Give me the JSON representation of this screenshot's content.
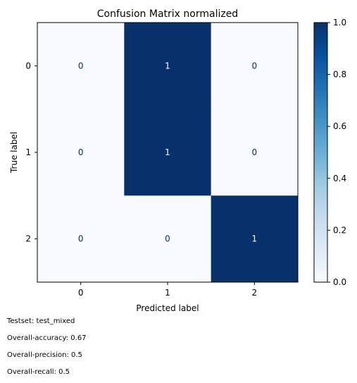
{
  "chart_data": {
    "type": "heatmap",
    "title": "Confusion Matrix normalized",
    "xlabel": "Predicted label",
    "ylabel": "True label",
    "x_categories": [
      "0",
      "1",
      "2"
    ],
    "y_categories": [
      "0",
      "1",
      "2"
    ],
    "values": [
      [
        0,
        1,
        0
      ],
      [
        0,
        1,
        0
      ],
      [
        0,
        0,
        1
      ]
    ],
    "cell_labels": [
      [
        "0",
        "1",
        "0"
      ],
      [
        "0",
        "1",
        "0"
      ],
      [
        "0",
        "0",
        "1"
      ]
    ],
    "colormap": "Blues",
    "color_low": "#f7fbff",
    "color_high": "#08306b",
    "colorbar": {
      "min": 0,
      "max": 1,
      "ticks": [
        0.0,
        0.2,
        0.4,
        0.6,
        0.8,
        1.0
      ],
      "tick_labels": [
        "0.0",
        "0.2",
        "0.4",
        "0.6",
        "0.8",
        "1.0"
      ]
    },
    "grid": false
  },
  "footer": {
    "testset": "Testset: test_mixed",
    "accuracy": "Overall-accuracy: 0.67",
    "precision": "Overall-precision: 0.5",
    "recall": "Overall-recall: 0.5"
  }
}
